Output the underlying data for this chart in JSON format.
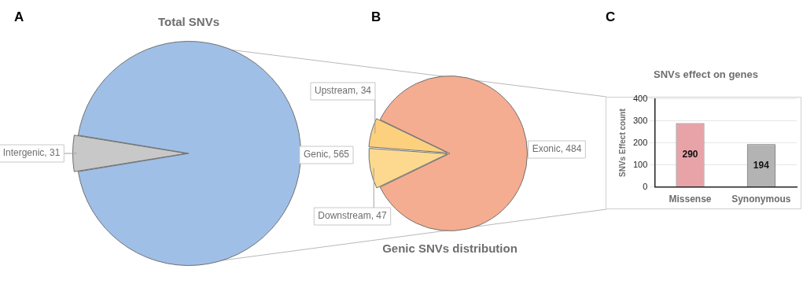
{
  "chart_data": [
    {
      "type": "pie",
      "title": "Total SNVs",
      "categories": [
        "Intergenic",
        "Genic"
      ],
      "values": [
        31,
        565
      ],
      "colors": [
        "#c8c8c8",
        "#9fbfe7"
      ],
      "value_labels": [
        ", 31",
        ", 565"
      ],
      "legend": false,
      "annotations": [
        "A"
      ]
    },
    {
      "type": "pie",
      "title": "Genic SNVs distribution",
      "categories": [
        "Downstream",
        "Upstream",
        "Exonic"
      ],
      "values": [
        47,
        34,
        484
      ],
      "colors": [
        "#fdd98f",
        "#fdd07e",
        "#f4ad90"
      ],
      "value_labels": [
        ", 47",
        ", 34",
        ", 484"
      ],
      "legend": false,
      "annotations": [
        "B"
      ]
    },
    {
      "type": "bar",
      "title": "SNVs effect on genes",
      "ylabel": "SNVs Effect count",
      "categories": [
        "Missense",
        "Synonymous"
      ],
      "values": [
        290,
        194
      ],
      "colors": [
        "#e8a3a8",
        "#b3b3b3"
      ],
      "ylim": [
        0,
        400
      ],
      "yticks": [
        0,
        100,
        200,
        300,
        400
      ],
      "grid": "y",
      "data_labels": true,
      "legend": false,
      "annotations": [
        "C"
      ]
    }
  ]
}
